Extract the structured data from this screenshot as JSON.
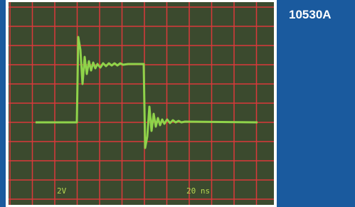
{
  "label": "10530A",
  "screen": {
    "volts_per_div": "2V",
    "time_per_div": "20 ns"
  }
}
